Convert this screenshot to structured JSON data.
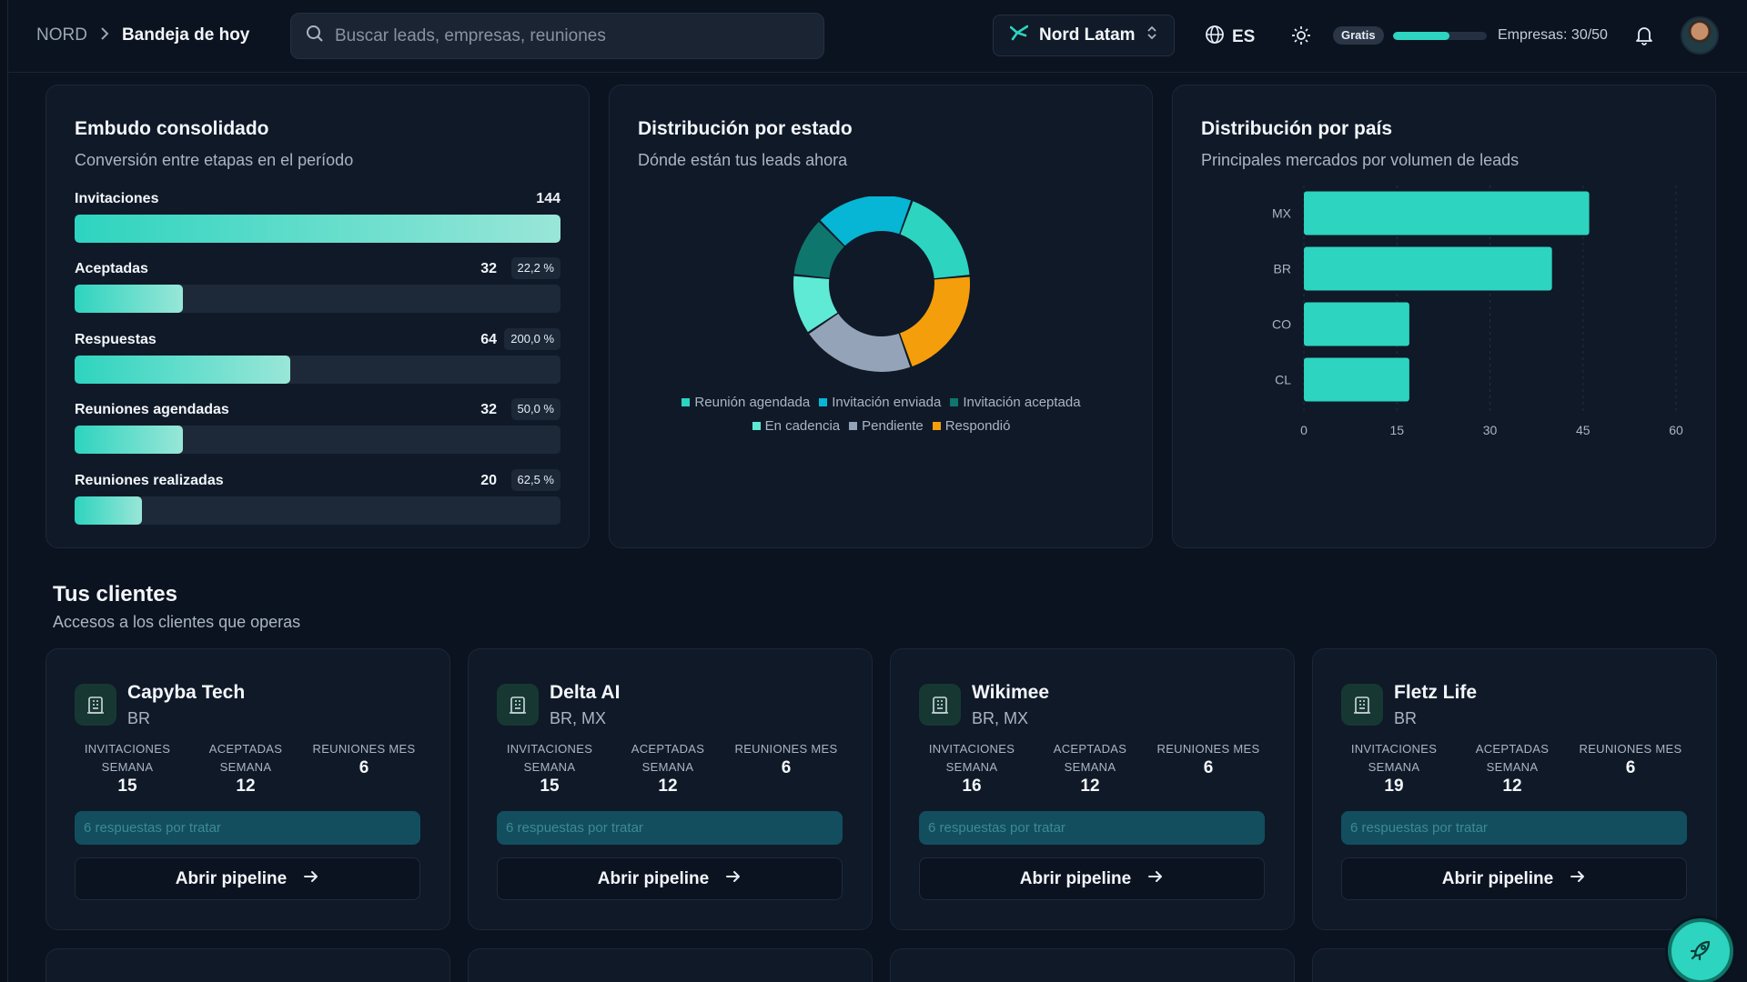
{
  "breadcrumb": {
    "root": "NORD",
    "current": "Bandeja de hoy"
  },
  "search": {
    "placeholder": "Buscar leads, empresas, reuniones"
  },
  "workspace": {
    "name": "Nord Latam"
  },
  "language": {
    "code": "ES"
  },
  "plan": {
    "badge": "Gratis",
    "usage_text": "Empresas: 30/50",
    "usage_fraction": 0.6
  },
  "funnel": {
    "title": "Embudo consolidado",
    "subtitle": "Conversión entre etapas en el período",
    "max": 144,
    "rows": [
      {
        "label": "Invitaciones",
        "value": 144,
        "pct": ""
      },
      {
        "label": "Aceptadas",
        "value": 32,
        "pct": "22,2 %"
      },
      {
        "label": "Respuestas",
        "value": 64,
        "pct": "200,0 %"
      },
      {
        "label": "Reuniones agendadas",
        "value": 32,
        "pct": "50,0 %"
      },
      {
        "label": "Reuniones realizadas",
        "value": 20,
        "pct": "62,5 %"
      }
    ]
  },
  "status_chart": {
    "title": "Distribución por estado",
    "subtitle": "Dónde están tus leads ahora"
  },
  "country_chart": {
    "title": "Distribución por país",
    "subtitle": "Principales mercados por volumen de leads"
  },
  "chart_data": [
    {
      "type": "pie",
      "title": "Distribución por estado",
      "legend_position": "bottom",
      "slices": [
        {
          "name": "Reunión agendada",
          "value": 18,
          "color": "#2dd4bf"
        },
        {
          "name": "Respondió",
          "value": 21,
          "color": "#f59e0b"
        },
        {
          "name": "Pendiente",
          "value": 21,
          "color": "#94a3b8"
        },
        {
          "name": "En cadencia",
          "value": 11,
          "color": "#5eead4"
        },
        {
          "name": "Invitación aceptada",
          "value": 11,
          "color": "#0f766e"
        },
        {
          "name": "Invitación enviada",
          "value": 18,
          "color": "#06b6d4"
        }
      ],
      "legend_order": [
        "Reunión agendada",
        "Invitación enviada",
        "Invitación aceptada",
        "En cadencia",
        "Pendiente",
        "Respondió"
      ]
    },
    {
      "type": "bar",
      "orientation": "horizontal",
      "title": "Distribución por país",
      "categories": [
        "MX",
        "BR",
        "CO",
        "CL"
      ],
      "values": [
        46,
        40,
        17,
        17
      ],
      "xlim": [
        0,
        60
      ],
      "xticks": [
        "0",
        "15",
        "30",
        "45",
        "60"
      ],
      "grid": "vertical",
      "color": "#2dd4bf"
    }
  ],
  "clients_section": {
    "title": "Tus clientes",
    "subtitle": "Accesos a los clientes que operas"
  },
  "client_labels": {
    "invitations_1": "INVITACIONES",
    "invitations_2": "SEMANA",
    "accepted_1": "ACEPTADAS",
    "accepted_2": "SEMANA",
    "meetings": "REUNIONES MES",
    "open_button": "Abrir pipeline"
  },
  "clients": [
    {
      "name": "Capyba Tech",
      "countries": "BR",
      "invitations": "15",
      "accepted": "12",
      "meetings": "6",
      "pending": "6 respuestas por tratar"
    },
    {
      "name": "Delta AI",
      "countries": "BR, MX",
      "invitations": "15",
      "accepted": "12",
      "meetings": "6",
      "pending": "6 respuestas por tratar"
    },
    {
      "name": "Wikimee",
      "countries": "BR, MX",
      "invitations": "16",
      "accepted": "12",
      "meetings": "6",
      "pending": "6 respuestas por tratar"
    },
    {
      "name": "Fletz Life",
      "countries": "BR",
      "invitations": "19",
      "accepted": "12",
      "meetings": "6",
      "pending": "6 respuestas por tratar"
    }
  ],
  "colors": {
    "accent": "#2dd4bf",
    "background": "#0b1320",
    "card": "#0f1928"
  },
  "icons": {
    "search": "search-icon",
    "workspace": "workspace-logo-icon",
    "chevrons": "chevron-up-down-icon",
    "globe": "globe-icon",
    "theme": "sun-icon",
    "bell": "bell-icon",
    "building": "building-icon",
    "arrow": "arrow-right-icon",
    "rocket": "rocket-icon"
  }
}
